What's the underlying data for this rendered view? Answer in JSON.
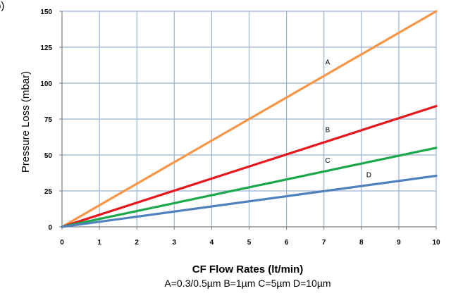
{
  "chart_data": {
    "type": "line",
    "title": "",
    "xlabel": "CF Flow Rates (lt/min)",
    "ylabel": "Pressure Loss (mbar)",
    "subtitle": "A=0.3/0.5µm B=1µm C=5µm D=10µm",
    "corner_fragment": "b)",
    "x": [
      0,
      10
    ],
    "xlim": [
      0,
      10
    ],
    "ylim": [
      0,
      150
    ],
    "xticks": [
      0,
      1,
      2,
      3,
      4,
      5,
      6,
      7,
      8,
      9,
      10
    ],
    "yticks": [
      0,
      25,
      50,
      75,
      100,
      125,
      150
    ],
    "grid": true,
    "series": [
      {
        "name": "A",
        "values": [
          0,
          150
        ],
        "color": "#f79646",
        "label_at": [
          7.1,
          113
        ]
      },
      {
        "name": "B",
        "values": [
          0,
          84
        ],
        "color": "#e8151b",
        "label_at": [
          7.1,
          66
        ]
      },
      {
        "name": "C",
        "values": [
          0,
          55
        ],
        "color": "#1aa84b",
        "label_at": [
          7.1,
          44.5
        ]
      },
      {
        "name": "D",
        "values": [
          0,
          35.5
        ],
        "color": "#4f81bd",
        "label_at": [
          8.2,
          34.5
        ]
      }
    ],
    "colors": {
      "grid": "#9bb1d4",
      "axis": "#808080"
    }
  }
}
